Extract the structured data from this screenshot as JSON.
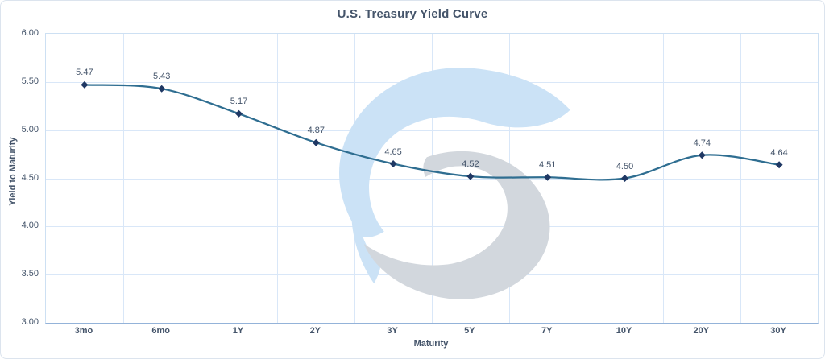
{
  "chart_data": {
    "type": "line",
    "title": "U.S. Treasury Yield Curve",
    "xlabel": "Maturity",
    "ylabel": "Yield to Maturity",
    "categories": [
      "3mo",
      "6mo",
      "1Y",
      "2Y",
      "3Y",
      "5Y",
      "7Y",
      "10Y",
      "20Y",
      "30Y"
    ],
    "values": [
      5.47,
      5.43,
      5.17,
      4.87,
      4.65,
      4.52,
      4.51,
      4.5,
      4.74,
      4.64
    ],
    "data_labels": [
      "5.47",
      "5.43",
      "5.17",
      "4.87",
      "4.65",
      "4.52",
      "4.51",
      "4.50",
      "4.74",
      "4.64"
    ],
    "ylim": [
      3.0,
      6.0
    ],
    "ytick_step": 0.5,
    "yticks": [
      "6.00",
      "5.50",
      "5.00",
      "4.50",
      "4.00",
      "3.50",
      "3.00"
    ],
    "grid": true,
    "smoothed": true,
    "legend": "none",
    "marker": "diamond",
    "colors": {
      "title": "#44546a",
      "label": "#44546a",
      "line": "#2f6e91",
      "marker": "#1f3864",
      "grid": "#d9e7f8",
      "axis": "#94b3d9",
      "plot_border": "#cde0f3",
      "watermark_blue": "#cbe2f6",
      "watermark_gray": "#d2d7dd"
    }
  }
}
